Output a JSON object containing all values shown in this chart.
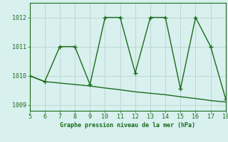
{
  "x": [
    5,
    6,
    7,
    8,
    9,
    10,
    11,
    12,
    13,
    14,
    15,
    16,
    17,
    18
  ],
  "y_jagged": [
    1010.0,
    1009.8,
    1011.0,
    1011.0,
    1009.7,
    1012.0,
    1012.0,
    1010.1,
    1012.0,
    1012.0,
    1009.55,
    1012.0,
    1011.0,
    1009.2
  ],
  "y_trend": [
    1010.0,
    1009.8,
    1009.75,
    1009.7,
    1009.65,
    1009.58,
    1009.52,
    1009.45,
    1009.4,
    1009.35,
    1009.28,
    1009.22,
    1009.15,
    1009.1
  ],
  "line_color": "#1a6b1a",
  "bg_color": "#d8f0ee",
  "grid_color": "#b8d4d0",
  "xlabel": "Graphe pression niveau de la mer (hPa)",
  "xlim": [
    5,
    18
  ],
  "ylim": [
    1008.8,
    1012.5
  ],
  "yticks": [
    1009,
    1010,
    1011,
    1012
  ],
  "xticks": [
    5,
    6,
    7,
    8,
    9,
    10,
    11,
    12,
    13,
    14,
    15,
    16,
    17,
    18
  ],
  "marker": "+",
  "markersize": 4,
  "linewidth": 1.0
}
